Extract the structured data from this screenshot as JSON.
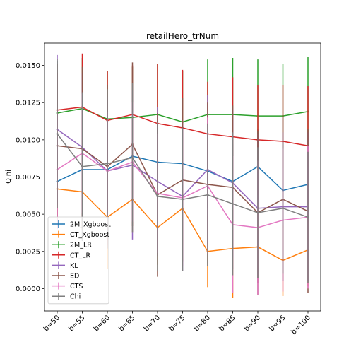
{
  "chart_data": {
    "type": "line",
    "title": "retailHero_trNum",
    "xlabel": "",
    "ylabel": "Qini",
    "categories": [
      "b=50",
      "b=55",
      "b=60",
      "b=65",
      "b=70",
      "b=75",
      "b=80",
      "b=85",
      "b=90",
      "b=95",
      "b=100"
    ],
    "ylim": [
      -0.0015,
      0.0165
    ],
    "yticks": [
      0.0,
      0.0025,
      0.005,
      0.0075,
      0.01,
      0.0125,
      0.015
    ],
    "ytick_labels": [
      "0.0000",
      "0.0025",
      "0.0050",
      "0.0075",
      "0.0100",
      "0.0125",
      "0.0150"
    ],
    "legend_position": "lower-left",
    "grid": false,
    "series": [
      {
        "name": "2M_Xgboost",
        "color": "#1f77b4",
        "values": [
          0.0072,
          0.008,
          0.008,
          0.0089,
          0.0085,
          0.0084,
          0.0079,
          0.0072,
          0.0082,
          0.0066,
          0.007
        ],
        "err": [
          0.0025,
          0.0025,
          0.0025,
          0.0025,
          0.0025,
          0.0025,
          0.0025,
          0.0025,
          0.0025,
          0.0025,
          0.0025
        ]
      },
      {
        "name": "CT_Xgboost",
        "color": "#ff7f0e",
        "values": [
          0.0067,
          0.0065,
          0.0048,
          0.006,
          0.0041,
          0.0054,
          0.0025,
          0.0027,
          0.0028,
          0.0019,
          0.0026
        ],
        "err": [
          0.0025,
          0.0025,
          0.0035,
          0.0022,
          0.0025,
          0.0025,
          0.0024,
          0.0033,
          0.0024,
          0.0024,
          0.0024
        ]
      },
      {
        "name": "2M_LR",
        "color": "#2ca02c",
        "values": [
          0.0118,
          0.0121,
          0.0114,
          0.0115,
          0.0117,
          0.0112,
          0.0117,
          0.0117,
          0.0116,
          0.0116,
          0.0119
        ],
        "err": [
          0.0035,
          0.0034,
          0.0032,
          0.0034,
          0.0034,
          0.0034,
          0.0037,
          0.0038,
          0.0038,
          0.0035,
          0.0037
        ]
      },
      {
        "name": "CT_LR",
        "color": "#d62728",
        "values": [
          0.012,
          0.0122,
          0.0113,
          0.0117,
          0.0111,
          0.0108,
          0.0104,
          0.0102,
          0.01,
          0.0099,
          0.0096
        ],
        "err": [
          0.0025,
          0.0036,
          0.0033,
          0.0033,
          0.004,
          0.0039,
          0.0035,
          0.004,
          0.0037,
          0.0038,
          0.004
        ]
      },
      {
        "name": "KL",
        "color": "#9467bd",
        "values": [
          0.0107,
          0.0095,
          0.0079,
          0.0083,
          0.0072,
          0.0062,
          0.008,
          0.0071,
          0.0054,
          0.0055,
          0.0055
        ],
        "err": [
          0.005,
          0.005,
          0.005,
          0.005,
          0.005,
          0.005,
          0.005,
          0.005,
          0.005,
          0.005,
          0.005
        ]
      },
      {
        "name": "ED",
        "color": "#8c564b",
        "values": [
          0.0096,
          0.0094,
          0.0082,
          0.0097,
          0.0063,
          0.0073,
          0.007,
          0.0068,
          0.0051,
          0.006,
          0.0052
        ],
        "err": [
          0.0055,
          0.0055,
          0.0055,
          0.0055,
          0.0055,
          0.0055,
          0.0055,
          0.0055,
          0.0055,
          0.0055,
          0.0055
        ]
      },
      {
        "name": "CTS",
        "color": "#e377c2",
        "values": [
          0.008,
          0.0091,
          0.0079,
          0.0085,
          0.0064,
          0.0061,
          0.0069,
          0.0043,
          0.0041,
          0.0046,
          0.0048
        ],
        "err": [
          0.004,
          0.004,
          0.004,
          0.004,
          0.004,
          0.0046,
          0.0046,
          0.0046,
          0.0045,
          0.0048,
          0.0048
        ]
      },
      {
        "name": "Chi",
        "color": "#7f7f7f",
        "values": [
          0.0104,
          0.0082,
          0.0084,
          0.0088,
          0.0062,
          0.006,
          0.0063,
          0.0057,
          0.0051,
          0.0054,
          0.0048
        ],
        "err": [
          0.005,
          0.005,
          0.005,
          0.005,
          0.005,
          0.0048,
          0.0048,
          0.0048,
          0.0044,
          0.0044,
          0.0044
        ]
      }
    ]
  }
}
